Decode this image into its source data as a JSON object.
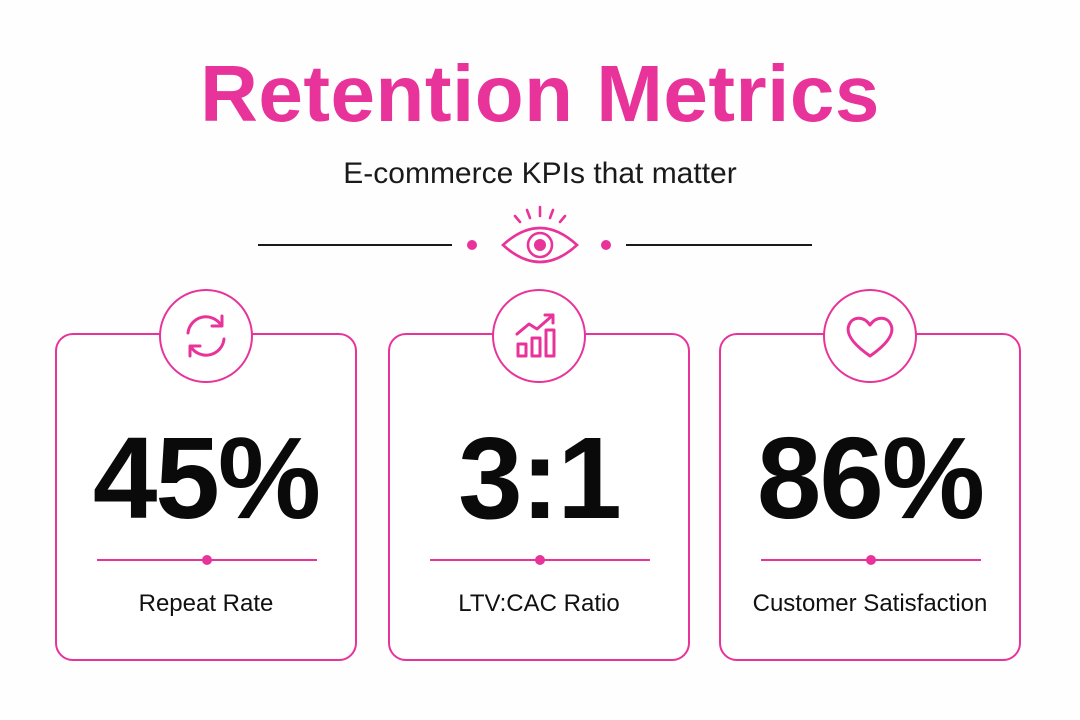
{
  "header": {
    "title": "Retention Metrics",
    "subtitle": "E-commerce KPIs that matter",
    "divider_icon": "eye-icon"
  },
  "colors": {
    "accent": "#e8339a",
    "text": "#0a0a0a"
  },
  "metrics": [
    {
      "value": "45%",
      "label": "Repeat Rate",
      "icon": "refresh-icon"
    },
    {
      "value": "3:1",
      "label": "LTV:CAC Ratio",
      "icon": "growth-chart-icon"
    },
    {
      "value": "86%",
      "label": "Customer Satisfaction",
      "icon": "heart-icon"
    }
  ]
}
